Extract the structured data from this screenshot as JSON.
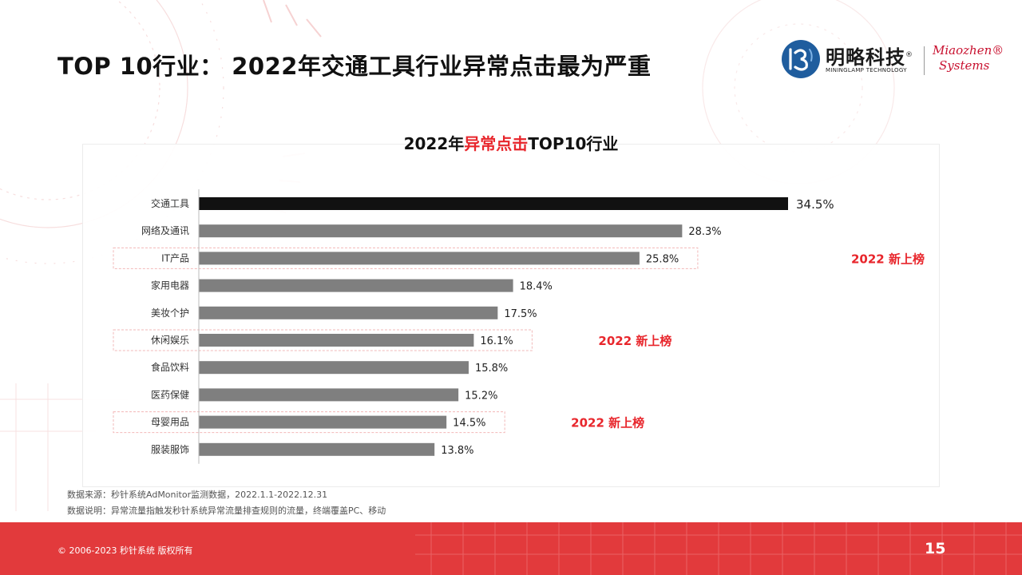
{
  "slide": {
    "title": "TOP 10行业： 2022年交通工具行业异常点击最为严重",
    "page_number": "15",
    "copyright": "© 2006-2023 秒针系统 版权所有"
  },
  "logo": {
    "name": "明略科技",
    "reg": "®",
    "sub": "MININGLAMP TECHNOLOGY",
    "brand_line1": "Miaozhen®",
    "brand_line2": "Systems"
  },
  "chart_heading": {
    "prefix": "2022年",
    "highlight": "异常点击",
    "suffix": "TOP10行业"
  },
  "notes": {
    "source": "数据来源：秒针系统AdMonitor监测数据，2022.1.1-2022.12.31",
    "explanation": "数据说明：异常流量指触发秒针系统异常流量排查规则的流量，终端覆盖PC、移动"
  },
  "chart_data": {
    "type": "bar",
    "orientation": "horizontal",
    "title": "2022年异常点击TOP10行业",
    "categories": [
      "交通工具",
      "网络及通讯",
      "IT产品",
      "家用电器",
      "美妆个护",
      "休闲娱乐",
      "食品饮料",
      "医药保健",
      "母婴用品",
      "服装服饰"
    ],
    "values": [
      34.5,
      28.3,
      25.8,
      18.4,
      17.5,
      16.1,
      15.8,
      15.2,
      14.5,
      13.8
    ],
    "value_labels": [
      "34.5%",
      "28.3%",
      "25.8%",
      "18.4%",
      "17.5%",
      "16.1%",
      "15.8%",
      "15.2%",
      "14.5%",
      "13.8%"
    ],
    "unit": "%",
    "xlim": [
      0,
      34.5
    ],
    "grid": false,
    "highlight_category": "交通工具",
    "annotations": [
      {
        "category": "IT产品",
        "text": "2022 新上榜"
      },
      {
        "category": "休闲娱乐",
        "text": "2022 新上榜"
      },
      {
        "category": "母婴用品",
        "text": "2022 新上榜"
      }
    ],
    "colors": {
      "top_bar": "#111111",
      "bar": "#7f7f7f",
      "annotation": "#e8262c",
      "annotation_box": "#f2b8b8"
    }
  }
}
